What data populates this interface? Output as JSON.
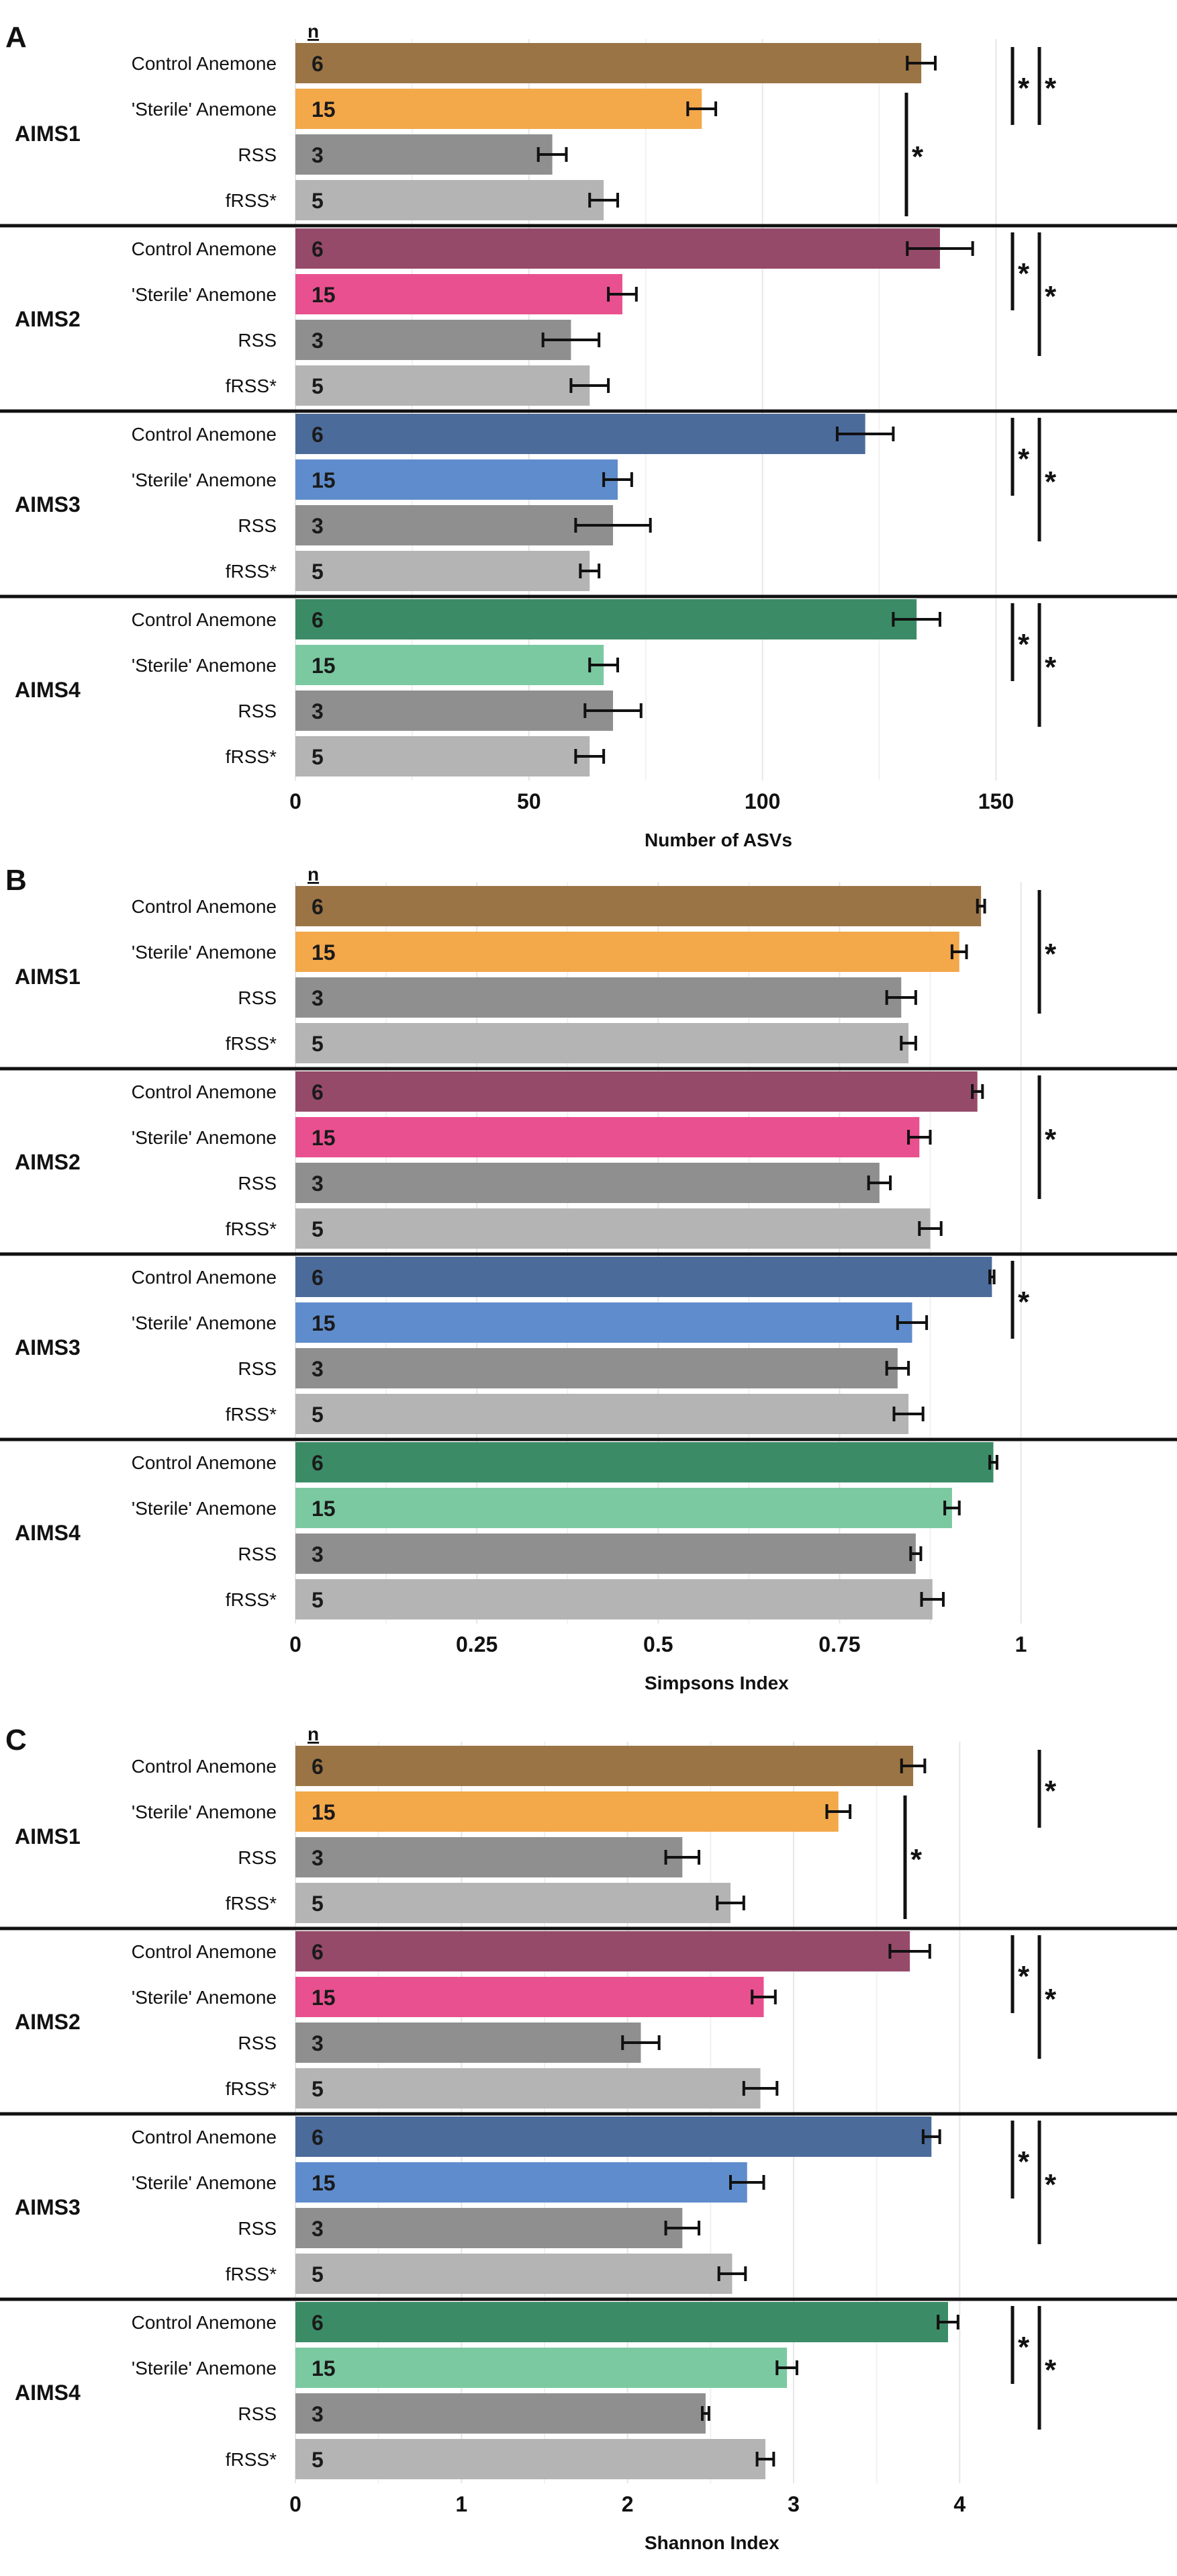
{
  "chart_data": [
    {
      "type": "bar",
      "orientation": "horizontal",
      "panel_label": "A",
      "xlabel": "Number of ASVs",
      "xlim": [
        0,
        160
      ],
      "xticks": [
        0,
        50,
        100,
        150
      ],
      "xtick_labels": [
        "0",
        "50",
        "100",
        "150"
      ],
      "n_header": "n",
      "groups": [
        {
          "name": "AIMS1",
          "significance": [
            {
              "rows": [
                0,
                1
              ],
              "label": "*"
            },
            {
              "rows": [
                0,
                1
              ],
              "label": "*",
              "outer": true
            },
            {
              "rows": [
                1,
                3
              ],
              "label": "*",
              "inner": true
            }
          ]
        },
        {
          "name": "AIMS2",
          "significance": [
            {
              "rows": [
                0,
                1
              ],
              "label": "*"
            },
            {
              "rows": [
                0,
                2
              ],
              "label": "*",
              "outer": true
            }
          ]
        },
        {
          "name": "AIMS3",
          "significance": [
            {
              "rows": [
                0,
                1
              ],
              "label": "*"
            },
            {
              "rows": [
                0,
                2
              ],
              "label": "*",
              "outer": true
            }
          ]
        },
        {
          "name": "AIMS4",
          "significance": [
            {
              "rows": [
                0,
                1
              ],
              "label": "*"
            },
            {
              "rows": [
                0,
                2
              ],
              "label": "*",
              "outer": true
            }
          ]
        }
      ],
      "categories": [
        "Control Anemone",
        "'Sterile' Anemone",
        "RSS",
        "fRSS*"
      ],
      "n": [
        6,
        15,
        3,
        5
      ],
      "values": [
        [
          134,
          87,
          55,
          66
        ],
        [
          138,
          70,
          59,
          63
        ],
        [
          122,
          69,
          68,
          63
        ],
        [
          133,
          66,
          68,
          63
        ]
      ],
      "errors": [
        [
          3,
          3,
          3,
          3
        ],
        [
          7,
          3,
          6,
          4
        ],
        [
          6,
          3,
          8,
          2
        ],
        [
          5,
          3,
          6,
          3
        ]
      ]
    },
    {
      "type": "bar",
      "orientation": "horizontal",
      "panel_label": "B",
      "xlabel": "Simpsons Index",
      "xlim": [
        0,
        1.03
      ],
      "xticks": [
        0,
        0.25,
        0.5,
        0.75,
        1
      ],
      "xtick_labels": [
        "0",
        "0.25",
        "0.5",
        "0.75",
        "1"
      ],
      "n_header": "n",
      "groups": [
        {
          "name": "AIMS1",
          "significance": [
            {
              "rows": [
                0,
                2
              ],
              "label": "*",
              "outer": true
            }
          ]
        },
        {
          "name": "AIMS2",
          "significance": [
            {
              "rows": [
                0,
                2
              ],
              "label": "*",
              "outer": true
            }
          ]
        },
        {
          "name": "AIMS3",
          "significance": [
            {
              "rows": [
                0,
                1
              ],
              "label": "*"
            }
          ]
        },
        {
          "name": "AIMS4",
          "significance": []
        }
      ],
      "categories": [
        "Control Anemone",
        "'Sterile' Anemone",
        "RSS",
        "fRSS*"
      ],
      "n": [
        6,
        15,
        3,
        5
      ],
      "values": [
        [
          0.945,
          0.915,
          0.835,
          0.845
        ],
        [
          0.94,
          0.86,
          0.805,
          0.875
        ],
        [
          0.96,
          0.85,
          0.83,
          0.845
        ],
        [
          0.962,
          0.905,
          0.855,
          0.878
        ]
      ],
      "errors": [
        [
          0.005,
          0.01,
          0.02,
          0.01
        ],
        [
          0.007,
          0.015,
          0.015,
          0.015
        ],
        [
          0.003,
          0.02,
          0.015,
          0.02
        ],
        [
          0.005,
          0.01,
          0.007,
          0.015
        ]
      ]
    },
    {
      "type": "bar",
      "orientation": "horizontal",
      "panel_label": "C",
      "xlabel": "Shannon Index",
      "xlim": [
        0,
        4.5
      ],
      "xticks": [
        0,
        1,
        2,
        3,
        4
      ],
      "xtick_labels": [
        "0",
        "1",
        "2",
        "3",
        "4"
      ],
      "n_header": "n",
      "groups": [
        {
          "name": "AIMS1",
          "significance": [
            {
              "rows": [
                0,
                1
              ],
              "label": "*",
              "outer": true
            },
            {
              "rows": [
                1,
                3
              ],
              "label": "*",
              "inner": true
            }
          ]
        },
        {
          "name": "AIMS2",
          "significance": [
            {
              "rows": [
                0,
                1
              ],
              "label": "*"
            },
            {
              "rows": [
                0,
                2
              ],
              "label": "*",
              "outer": true
            }
          ]
        },
        {
          "name": "AIMS3",
          "significance": [
            {
              "rows": [
                0,
                1
              ],
              "label": "*"
            },
            {
              "rows": [
                0,
                2
              ],
              "label": "*",
              "outer": true
            }
          ]
        },
        {
          "name": "AIMS4",
          "significance": [
            {
              "rows": [
                0,
                1
              ],
              "label": "*"
            },
            {
              "rows": [
                0,
                2
              ],
              "label": "*",
              "outer": true
            }
          ]
        }
      ],
      "categories": [
        "Control Anemone",
        "'Sterile' Anemone",
        "RSS",
        "fRSS*"
      ],
      "n": [
        6,
        15,
        3,
        5
      ],
      "values": [
        [
          3.72,
          3.27,
          2.33,
          2.62
        ],
        [
          3.7,
          2.82,
          2.08,
          2.8
        ],
        [
          3.83,
          2.72,
          2.33,
          2.63
        ],
        [
          3.93,
          2.96,
          2.47,
          2.83
        ]
      ],
      "errors": [
        [
          0.07,
          0.07,
          0.1,
          0.08
        ],
        [
          0.12,
          0.07,
          0.11,
          0.1
        ],
        [
          0.05,
          0.1,
          0.1,
          0.08
        ],
        [
          0.06,
          0.06,
          0.02,
          0.05
        ]
      ]
    }
  ],
  "colors": {
    "AIMS1": [
      "#9b7445",
      "#f3a84a",
      "#8f8f8f",
      "#b4b4b4"
    ],
    "AIMS2": [
      "#964a6a",
      "#e9508f",
      "#8f8f8f",
      "#b4b4b4"
    ],
    "AIMS3": [
      "#4b6b9b",
      "#5f8ccc",
      "#8f8f8f",
      "#b4b4b4"
    ],
    "AIMS4": [
      "#3b8c66",
      "#7bc9a1",
      "#8f8f8f",
      "#b4b4b4"
    ],
    "grid": "#e6e6e6",
    "text": "#111111"
  }
}
